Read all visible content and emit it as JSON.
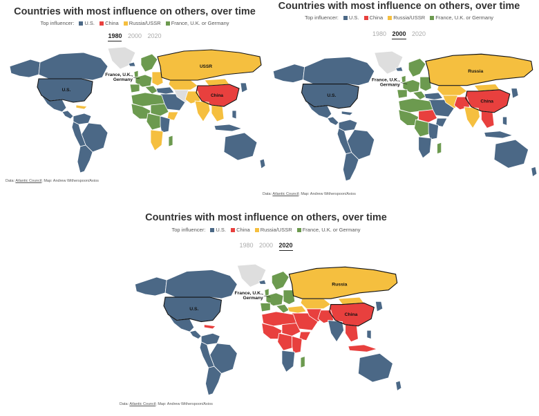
{
  "title": "Countries with most influence on others, over time",
  "legend": {
    "label": "Top influencer:",
    "items": [
      {
        "name": "U.S.",
        "color": "#4b6886"
      },
      {
        "name": "China",
        "color": "#e8403e"
      },
      {
        "name": "Russia/USSR",
        "color": "#f5bf3f"
      },
      {
        "name": "France, U.K. or Germany",
        "color": "#6c9a4f"
      }
    ]
  },
  "years": [
    "1980",
    "2000",
    "2020"
  ],
  "panels": [
    {
      "year": "1980",
      "russia_label": "USSR"
    },
    {
      "year": "2000",
      "russia_label": "Russia"
    },
    {
      "year": "2020",
      "russia_label": "Russia"
    }
  ],
  "map_labels": {
    "us": "U.S.",
    "china": "China",
    "europe_line1": "France, U.K.,",
    "europe_line2": "Germany"
  },
  "credit": {
    "prefix": "Data: ",
    "source": "Atlantic Council",
    "suffix": "; Map: Andrew Witherspoon/Axios"
  },
  "colors": {
    "none": "#dedede",
    "water": "#ffffff"
  }
}
